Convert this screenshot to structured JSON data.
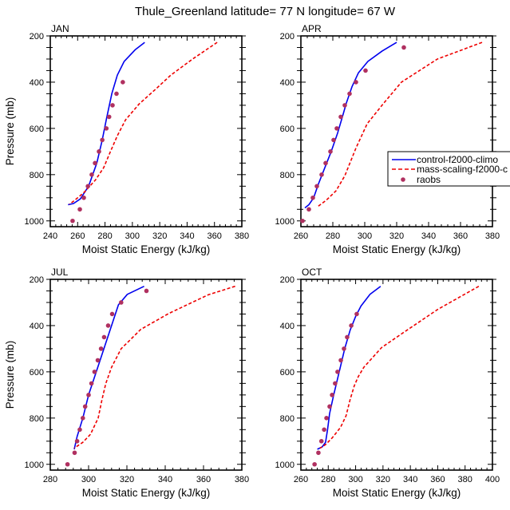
{
  "figure_title": "Thule_Greenland  latitude= 77 N longitude= 67 W",
  "colors": {
    "control": "#0000ee",
    "mass_scaling": "#ee0000",
    "raobs": "#b03060",
    "axis": "#000000"
  },
  "legend": {
    "placement": "right of APR panel, partially clipped",
    "entries": [
      {
        "label": "control-f2000-climo",
        "style": "solid",
        "color": "#0000ee"
      },
      {
        "label": "mass-scaling-f2000-c",
        "style": "dashed",
        "color": "#ee0000"
      },
      {
        "label": "raobs",
        "style": "marker",
        "color": "#b03060"
      }
    ]
  },
  "chart_data": [
    {
      "type": "line",
      "panel": "JAN",
      "title": "JAN",
      "xlabel": "Moist Static Energy (kJ/kg)",
      "ylabel": "Pressure (mb)",
      "xlim": [
        240,
        380
      ],
      "ylim": [
        1025,
        200
      ],
      "xticks": [
        240,
        260,
        280,
        300,
        320,
        340,
        360,
        380
      ],
      "yticks": [
        200,
        400,
        600,
        800,
        1000
      ],
      "grid": false,
      "series": [
        {
          "name": "control-f2000-climo",
          "style": "solid",
          "points": [
            [
              309,
              228
            ],
            [
              302,
              260
            ],
            [
              294,
              310
            ],
            [
              289,
              370
            ],
            [
              285,
              450
            ],
            [
              281,
              560
            ],
            [
              278,
              650
            ],
            [
              274,
              750
            ],
            [
              268,
              850
            ],
            [
              262,
              905
            ],
            [
              257,
              925
            ],
            [
              253,
              930
            ]
          ]
        },
        {
          "name": "mass-scaling-f2000-c",
          "style": "dashed",
          "points": [
            [
              362,
              228
            ],
            [
              344,
              300
            ],
            [
              328,
              370
            ],
            [
              318,
              425
            ],
            [
              305,
              494
            ],
            [
              295,
              563
            ],
            [
              289,
              632
            ],
            [
              284,
              700
            ],
            [
              279,
              770
            ],
            [
              273,
              823
            ],
            [
              265,
              875
            ],
            [
              258,
              910
            ],
            [
              254,
              928
            ]
          ]
        },
        {
          "name": "raobs",
          "style": "marker",
          "points": [
            [
              293,
              400
            ],
            [
              288.4,
              450
            ],
            [
              285.5,
              500
            ],
            [
              283,
              550
            ],
            [
              281,
              600
            ],
            [
              278,
              650
            ],
            [
              275.6,
              700
            ],
            [
              272.7,
              750
            ],
            [
              270.3,
              800
            ],
            [
              267.5,
              850
            ],
            [
              264.5,
              900
            ],
            [
              261.6,
              950
            ],
            [
              256.3,
              1000
            ]
          ]
        }
      ]
    },
    {
      "type": "line",
      "panel": "APR",
      "title": "APR",
      "xlabel": "Moist Static Energy (kJ/kg)",
      "ylabel": "",
      "xlim": [
        260,
        380
      ],
      "ylim": [
        1025,
        200
      ],
      "xticks": [
        260,
        280,
        300,
        320,
        340,
        360,
        380
      ],
      "yticks": [
        200,
        400,
        600,
        800,
        1000
      ],
      "grid": false,
      "series": [
        {
          "name": "control-f2000-climo",
          "style": "solid",
          "points": [
            [
              320,
              228
            ],
            [
              311,
              265
            ],
            [
              302,
              310
            ],
            [
              296,
              360
            ],
            [
              292,
              420
            ],
            [
              288.5,
              490
            ],
            [
              286,
              550
            ],
            [
              283,
              620
            ],
            [
              279,
              700
            ],
            [
              275,
              770
            ],
            [
              271,
              840
            ],
            [
              268,
              900
            ],
            [
              265,
              930
            ],
            [
              262.5,
              944
            ]
          ]
        },
        {
          "name": "mass-scaling-f2000-c",
          "style": "dashed",
          "points": [
            [
              373.5,
              228
            ],
            [
              345.5,
              300
            ],
            [
              323,
              400
            ],
            [
              311.5,
              494
            ],
            [
              301.5,
              580
            ],
            [
              294.5,
              685
            ],
            [
              287.5,
              805
            ],
            [
              282,
              870
            ],
            [
              276,
              910
            ],
            [
              270,
              941
            ]
          ]
        },
        {
          "name": "raobs",
          "style": "marker",
          "points": [
            [
              324.5,
              250
            ],
            [
              300.5,
              350
            ],
            [
              294.5,
              400
            ],
            [
              290.5,
              450
            ],
            [
              287.5,
              500
            ],
            [
              285,
              550
            ],
            [
              282.5,
              600
            ],
            [
              280.5,
              650
            ],
            [
              278.5,
              700
            ],
            [
              275.5,
              750
            ],
            [
              273,
              800
            ],
            [
              270,
              850
            ],
            [
              267.5,
              900
            ],
            [
              265,
              950
            ],
            [
              261,
              1000
            ]
          ]
        }
      ]
    },
    {
      "type": "line",
      "panel": "JUL",
      "title": "JUL",
      "xlabel": "Moist Static Energy (kJ/kg)",
      "ylabel": "Pressure (mb)",
      "xlim": [
        280,
        380
      ],
      "ylim": [
        1025,
        200
      ],
      "xticks": [
        280,
        300,
        320,
        340,
        360,
        380
      ],
      "yticks": [
        200,
        400,
        600,
        800,
        1000
      ],
      "grid": false,
      "series": [
        {
          "name": "control-f2000-climo",
          "style": "solid",
          "points": [
            [
              329,
              230
            ],
            [
              320.2,
              265
            ],
            [
              315.6,
              310
            ],
            [
              312,
              400
            ],
            [
              308,
              500
            ],
            [
              304,
              600
            ],
            [
              300,
              700
            ],
            [
              297,
              800
            ],
            [
              294,
              880
            ],
            [
              292.5,
              935
            ]
          ]
        },
        {
          "name": "mass-scaling-f2000-c",
          "style": "dashed",
          "points": [
            [
              376.5,
              230
            ],
            [
              362.4,
              267
            ],
            [
              342,
              347
            ],
            [
              327.3,
              416
            ],
            [
              320.2,
              474
            ],
            [
              317,
              500
            ],
            [
              312,
              580
            ],
            [
              309,
              650
            ],
            [
              307,
              720
            ],
            [
              305,
              800
            ],
            [
              301,
              870
            ],
            [
              297,
              905
            ],
            [
              292.5,
              930
            ]
          ]
        },
        {
          "name": "raobs",
          "style": "marker",
          "points": [
            [
              330.2,
              250
            ],
            [
              317,
              300
            ],
            [
              312.3,
              350
            ],
            [
              310.2,
              400
            ],
            [
              308.1,
              450
            ],
            [
              306.5,
              500
            ],
            [
              304.8,
              550
            ],
            [
              303.1,
              600
            ],
            [
              301.5,
              650
            ],
            [
              300,
              700
            ],
            [
              298.2,
              750
            ],
            [
              297,
              800
            ],
            [
              295.4,
              850
            ],
            [
              294,
              900
            ],
            [
              292.7,
              950
            ],
            [
              289,
              1000
            ]
          ]
        }
      ]
    },
    {
      "type": "line",
      "panel": "OCT",
      "title": "OCT",
      "xlabel": "Moist Static Energy (kJ/kg)",
      "ylabel": "",
      "xlim": [
        260,
        400
      ],
      "ylim": [
        1025,
        200
      ],
      "xticks": [
        260,
        280,
        300,
        320,
        340,
        360,
        380,
        400
      ],
      "yticks": [
        200,
        400,
        600,
        800,
        1000
      ],
      "grid": false,
      "series": [
        {
          "name": "control-f2000-climo",
          "style": "solid",
          "points": [
            [
              318.3,
              230
            ],
            [
              310.5,
              265
            ],
            [
              304,
              315
            ],
            [
              300,
              360
            ],
            [
              296,
              420
            ],
            [
              292,
              500
            ],
            [
              288,
              600
            ],
            [
              284,
              700
            ],
            [
              281,
              780
            ],
            [
              279.5,
              850
            ],
            [
              278,
              905
            ],
            [
              275.5,
              925
            ],
            [
              272,
              935
            ]
          ]
        },
        {
          "name": "mass-scaling-f2000-c",
          "style": "dashed",
          "points": [
            [
              390,
              230
            ],
            [
              360,
              330
            ],
            [
              335,
              430
            ],
            [
              319,
              495
            ],
            [
              306,
              580
            ],
            [
              302,
              620
            ],
            [
              299,
              660
            ],
            [
              296,
              720
            ],
            [
              293,
              790
            ],
            [
              289,
              840
            ],
            [
              283,
              885
            ],
            [
              278,
              915
            ],
            [
              274,
              930
            ]
          ]
        },
        {
          "name": "raobs",
          "style": "marker",
          "points": [
            [
              300.8,
              350
            ],
            [
              296.8,
              400
            ],
            [
              293.8,
              450
            ],
            [
              291.5,
              500
            ],
            [
              289.2,
              550
            ],
            [
              286.8,
              600
            ],
            [
              285,
              650
            ],
            [
              282.8,
              700
            ],
            [
              281,
              750
            ],
            [
              278.7,
              800
            ],
            [
              277,
              850
            ],
            [
              275,
              900
            ],
            [
              272.8,
              950
            ],
            [
              270,
              1000
            ]
          ]
        }
      ]
    }
  ]
}
